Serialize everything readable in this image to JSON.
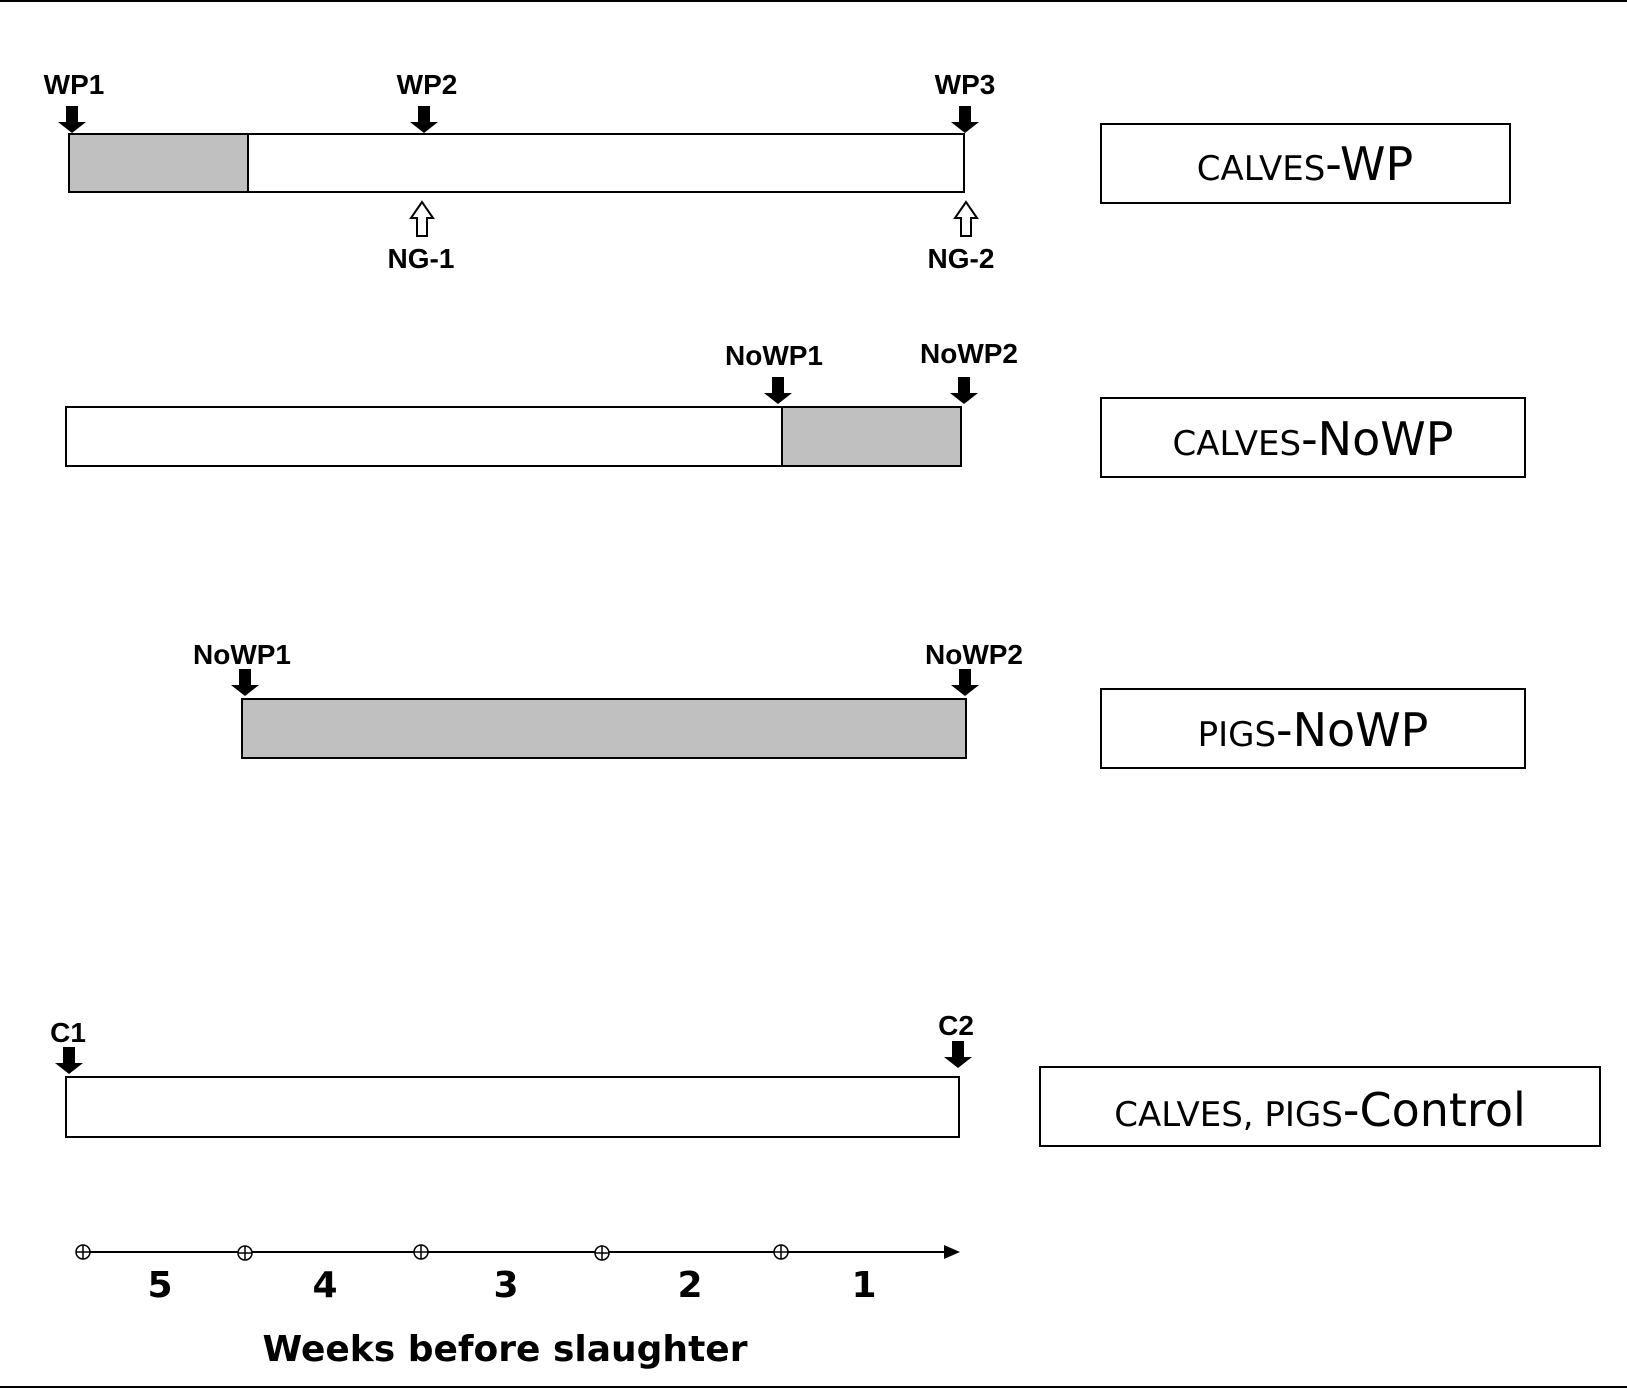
{
  "groups": {
    "calves_wp": {
      "label_sc": "CALVES",
      "label_main": "-WP",
      "markers_top": [
        "WP1",
        "WP2",
        "WP3"
      ],
      "markers_bottom": [
        "NG-1",
        "NG-2"
      ]
    },
    "calves_nowp": {
      "label_sc": "CALVES",
      "label_main": "-NoWP",
      "markers_top": [
        "NoWP1",
        "NoWP2"
      ]
    },
    "pigs_nowp": {
      "label_sc": "PIGS",
      "label_main": "-NoWP",
      "markers_top": [
        "NoWP1",
        "NoWP2"
      ]
    },
    "control": {
      "label_sc": "CALVES, PIGS",
      "label_main": "-Control",
      "markers_top": [
        "C1",
        "C2"
      ]
    }
  },
  "timeline": {
    "weeks": [
      "5",
      "4",
      "3",
      "2",
      "1"
    ],
    "title": "Weeks before slaughter"
  },
  "colors": {
    "shaded": "#c0c0c0",
    "stroke": "#000000",
    "background": "#ffffff"
  }
}
